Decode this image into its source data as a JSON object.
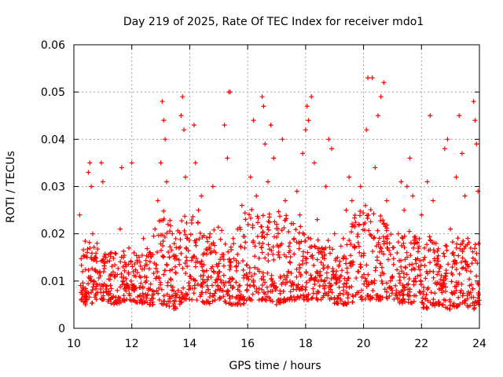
{
  "chart_data": {
    "type": "scatter",
    "title": "Day 219 of 2025, Rate Of TEC Index for receiver mdo1",
    "xlabel": "GPS time / hours",
    "ylabel": "ROTI / TECUs",
    "xlim": [
      10,
      24
    ],
    "ylim": [
      0,
      0.06
    ],
    "xticks": [
      {
        "value": 10,
        "label": "10"
      },
      {
        "value": 12,
        "label": "12"
      },
      {
        "value": 14,
        "label": "14"
      },
      {
        "value": 16,
        "label": "16"
      },
      {
        "value": 18,
        "label": "18"
      },
      {
        "value": 20,
        "label": "20"
      },
      {
        "value": 22,
        "label": "22"
      },
      {
        "value": 24,
        "label": "24"
      }
    ],
    "yticks": [
      {
        "value": 0,
        "label": "0"
      },
      {
        "value": 0.01,
        "label": "0.01"
      },
      {
        "value": 0.02,
        "label": "0.02"
      },
      {
        "value": 0.03,
        "label": "0.03"
      },
      {
        "value": 0.04,
        "label": "0.04"
      },
      {
        "value": 0.05,
        "label": "0.05"
      },
      {
        "value": 0.06,
        "label": "0.06"
      }
    ],
    "grid": true,
    "marker": "+",
    "color": "#ff0000",
    "series": [
      {
        "name": "ROTI",
        "points": [
          [
            10.2,
            0.024
          ],
          [
            10.25,
            0.006
          ],
          [
            10.3,
            0.012
          ],
          [
            10.35,
            0.008
          ],
          [
            10.4,
            0.005
          ],
          [
            10.45,
            0.015
          ],
          [
            10.5,
            0.033
          ],
          [
            10.55,
            0.035
          ],
          [
            10.6,
            0.03
          ],
          [
            10.65,
            0.02
          ],
          [
            10.7,
            0.01
          ],
          [
            10.75,
            0.007
          ],
          [
            10.8,
            0.018
          ],
          [
            10.9,
            0.012
          ],
          [
            10.95,
            0.035
          ],
          [
            11.0,
            0.031
          ],
          [
            11.05,
            0.014
          ],
          [
            11.1,
            0.009
          ],
          [
            11.2,
            0.006
          ],
          [
            11.3,
            0.016
          ],
          [
            11.4,
            0.011
          ],
          [
            11.5,
            0.008
          ],
          [
            11.6,
            0.021
          ],
          [
            11.65,
            0.034
          ],
          [
            11.7,
            0.013
          ],
          [
            11.8,
            0.009
          ],
          [
            11.9,
            0.017
          ],
          [
            12.0,
            0.035
          ],
          [
            12.05,
            0.012
          ],
          [
            12.1,
            0.008
          ],
          [
            12.2,
            0.014
          ],
          [
            12.3,
            0.006
          ],
          [
            12.4,
            0.019
          ],
          [
            12.5,
            0.01
          ],
          [
            12.6,
            0.016
          ],
          [
            12.7,
            0.008
          ],
          [
            12.8,
            0.021
          ],
          [
            12.9,
            0.027
          ],
          [
            13.0,
            0.035
          ],
          [
            13.05,
            0.048
          ],
          [
            13.1,
            0.044
          ],
          [
            13.15,
            0.04
          ],
          [
            13.2,
            0.031
          ],
          [
            13.25,
            0.022
          ],
          [
            13.3,
            0.015
          ],
          [
            13.35,
            0.009
          ],
          [
            13.4,
            0.02
          ],
          [
            13.5,
            0.013
          ],
          [
            13.6,
            0.008
          ],
          [
            13.7,
            0.045
          ],
          [
            13.75,
            0.049
          ],
          [
            13.8,
            0.042
          ],
          [
            13.85,
            0.032
          ],
          [
            13.9,
            0.019
          ],
          [
            14.0,
            0.011
          ],
          [
            14.1,
            0.015
          ],
          [
            14.15,
            0.043
          ],
          [
            14.2,
            0.035
          ],
          [
            14.3,
            0.025
          ],
          [
            14.4,
            0.028
          ],
          [
            14.5,
            0.012
          ],
          [
            14.6,
            0.009
          ],
          [
            14.7,
            0.02
          ],
          [
            14.8,
            0.03
          ],
          [
            14.9,
            0.016
          ],
          [
            15.0,
            0.011
          ],
          [
            15.1,
            0.008
          ],
          [
            15.2,
            0.043
          ],
          [
            15.3,
            0.036
          ],
          [
            15.35,
            0.05
          ],
          [
            15.4,
            0.05
          ],
          [
            15.5,
            0.019
          ],
          [
            15.6,
            0.013
          ],
          [
            15.7,
            0.009
          ],
          [
            15.8,
            0.026
          ],
          [
            15.9,
            0.017
          ],
          [
            16.0,
            0.011
          ],
          [
            16.1,
            0.032
          ],
          [
            16.2,
            0.044
          ],
          [
            16.3,
            0.028
          ],
          [
            16.4,
            0.018
          ],
          [
            16.5,
            0.049
          ],
          [
            16.55,
            0.047
          ],
          [
            16.6,
            0.039
          ],
          [
            16.7,
            0.031
          ],
          [
            16.8,
            0.043
          ],
          [
            16.9,
            0.036
          ],
          [
            17.0,
            0.022
          ],
          [
            17.1,
            0.015
          ],
          [
            17.2,
            0.04
          ],
          [
            17.3,
            0.027
          ],
          [
            17.4,
            0.012
          ],
          [
            17.5,
            0.009
          ],
          [
            17.6,
            0.019
          ],
          [
            17.7,
            0.029
          ],
          [
            17.8,
            0.024
          ],
          [
            17.9,
            0.037
          ],
          [
            18.0,
            0.042
          ],
          [
            18.05,
            0.047
          ],
          [
            18.1,
            0.044
          ],
          [
            18.2,
            0.049
          ],
          [
            18.3,
            0.035
          ],
          [
            18.4,
            0.023
          ],
          [
            18.5,
            0.012
          ],
          [
            18.6,
            0.009
          ],
          [
            18.7,
            0.03
          ],
          [
            18.8,
            0.04
          ],
          [
            18.9,
            0.038
          ],
          [
            19.0,
            0.02
          ],
          [
            19.1,
            0.015
          ],
          [
            19.2,
            0.011
          ],
          [
            19.3,
            0.019
          ],
          [
            19.4,
            0.025
          ],
          [
            19.5,
            0.032
          ],
          [
            19.6,
            0.027
          ],
          [
            19.7,
            0.017
          ],
          [
            19.8,
            0.012
          ],
          [
            19.9,
            0.03
          ],
          [
            20.0,
            0.022
          ],
          [
            20.1,
            0.042
          ],
          [
            20.15,
            0.053
          ],
          [
            20.3,
            0.053
          ],
          [
            20.4,
            0.034
          ],
          [
            20.5,
            0.045
          ],
          [
            20.6,
            0.049
          ],
          [
            20.7,
            0.052
          ],
          [
            20.8,
            0.027
          ],
          [
            20.9,
            0.018
          ],
          [
            21.0,
            0.011
          ],
          [
            21.1,
            0.009
          ],
          [
            21.2,
            0.02
          ],
          [
            21.3,
            0.031
          ],
          [
            21.4,
            0.025
          ],
          [
            21.5,
            0.03
          ],
          [
            21.6,
            0.036
          ],
          [
            21.7,
            0.028
          ],
          [
            21.8,
            0.019
          ],
          [
            21.9,
            0.013
          ],
          [
            22.0,
            0.024
          ],
          [
            22.1,
            0.017
          ],
          [
            22.2,
            0.031
          ],
          [
            22.3,
            0.045
          ],
          [
            22.4,
            0.027
          ],
          [
            22.5,
            0.018
          ],
          [
            22.6,
            0.012
          ],
          [
            22.7,
            0.009
          ],
          [
            22.8,
            0.038
          ],
          [
            22.9,
            0.04
          ],
          [
            23.0,
            0.021
          ],
          [
            23.1,
            0.016
          ],
          [
            23.2,
            0.032
          ],
          [
            23.3,
            0.045
          ],
          [
            23.4,
            0.037
          ],
          [
            23.5,
            0.028
          ],
          [
            23.6,
            0.019
          ],
          [
            23.7,
            0.012
          ],
          [
            23.8,
            0.048
          ],
          [
            23.85,
            0.044
          ],
          [
            23.9,
            0.039
          ],
          [
            23.95,
            0.029
          ]
        ],
        "band": [
          [
            10.2,
            0.006,
            0.016
          ],
          [
            10.5,
            0.005,
            0.02
          ],
          [
            10.9,
            0.006,
            0.016
          ],
          [
            11.4,
            0.005,
            0.016
          ],
          [
            11.9,
            0.006,
            0.017
          ],
          [
            12.4,
            0.005,
            0.016
          ],
          [
            12.8,
            0.005,
            0.02
          ],
          [
            13.1,
            0.005,
            0.026
          ],
          [
            13.5,
            0.004,
            0.022
          ],
          [
            13.8,
            0.006,
            0.028
          ],
          [
            14.2,
            0.006,
            0.024
          ],
          [
            14.6,
            0.005,
            0.02
          ],
          [
            15.0,
            0.006,
            0.023
          ],
          [
            15.4,
            0.005,
            0.018
          ],
          [
            15.8,
            0.005,
            0.024
          ],
          [
            16.2,
            0.006,
            0.026
          ],
          [
            16.6,
            0.006,
            0.028
          ],
          [
            17.0,
            0.005,
            0.025
          ],
          [
            17.4,
            0.006,
            0.024
          ],
          [
            17.8,
            0.006,
            0.022
          ],
          [
            18.2,
            0.006,
            0.02
          ],
          [
            18.6,
            0.006,
            0.02
          ],
          [
            19.0,
            0.005,
            0.017
          ],
          [
            19.4,
            0.005,
            0.018
          ],
          [
            19.8,
            0.006,
            0.026
          ],
          [
            20.2,
            0.006,
            0.026
          ],
          [
            20.6,
            0.006,
            0.024
          ],
          [
            21.0,
            0.006,
            0.02
          ],
          [
            21.4,
            0.005,
            0.022
          ],
          [
            21.8,
            0.005,
            0.02
          ],
          [
            22.2,
            0.004,
            0.02
          ],
          [
            22.6,
            0.005,
            0.018
          ],
          [
            23.0,
            0.004,
            0.018
          ],
          [
            23.4,
            0.005,
            0.02
          ],
          [
            23.8,
            0.004,
            0.018
          ],
          [
            24.0,
            0.005,
            0.018
          ]
        ],
        "band_density": 45
      }
    ]
  }
}
